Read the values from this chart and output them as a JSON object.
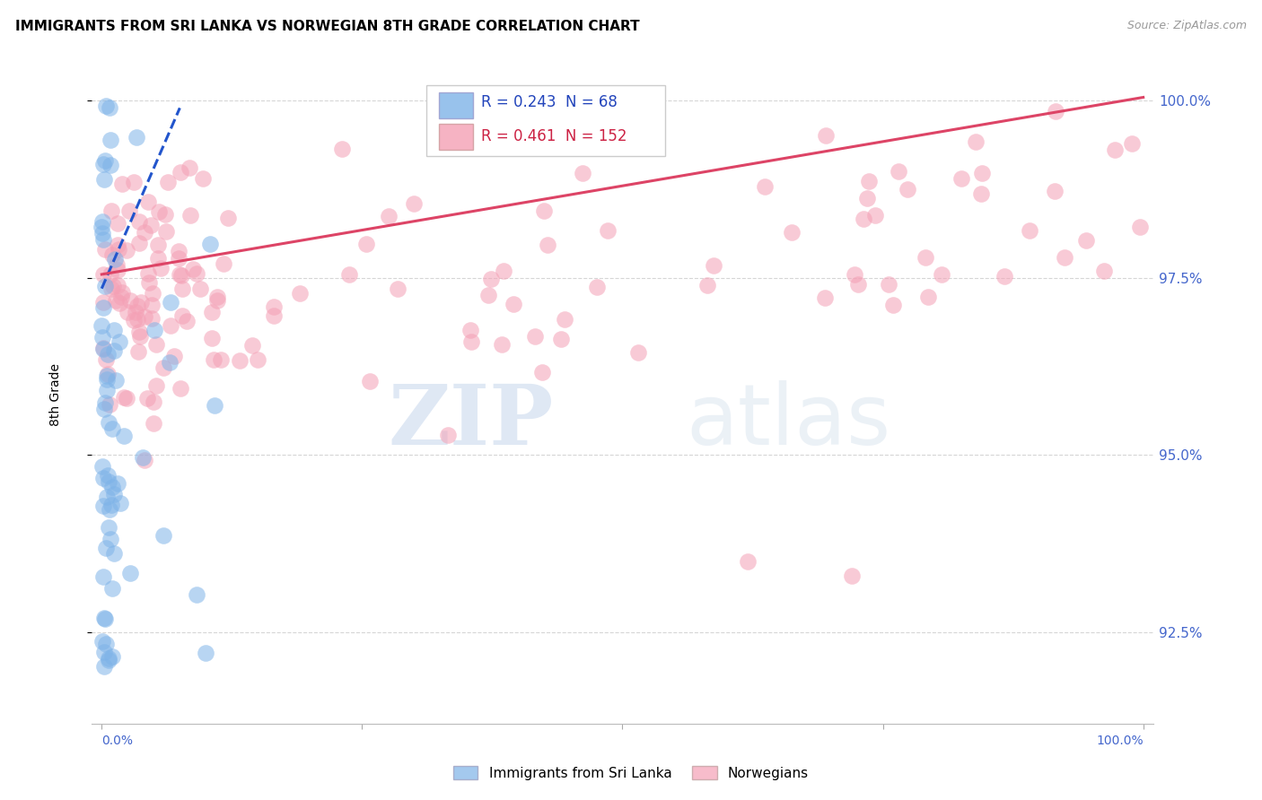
{
  "title": "IMMIGRANTS FROM SRI LANKA VS NORWEGIAN 8TH GRADE CORRELATION CHART",
  "source": "Source: ZipAtlas.com",
  "ylabel": "8th Grade",
  "ylim": [
    91.2,
    100.5
  ],
  "xlim": [
    -0.01,
    1.01
  ],
  "legend_blue_r": "0.243",
  "legend_blue_n": "68",
  "legend_pink_r": "0.461",
  "legend_pink_n": "152",
  "watermark_zip": "ZIP",
  "watermark_atlas": "atlas",
  "bg_color": "#ffffff",
  "blue_color": "#7eb3e8",
  "pink_color": "#f4a0b5",
  "blue_line_color": "#2255cc",
  "pink_line_color": "#dd4466",
  "grid_color": "#cccccc",
  "title_fontsize": 11,
  "source_fontsize": 9,
  "tick_label_color": "#4466cc",
  "y_tick_positions": [
    92.5,
    95.0,
    97.5,
    100.0
  ]
}
